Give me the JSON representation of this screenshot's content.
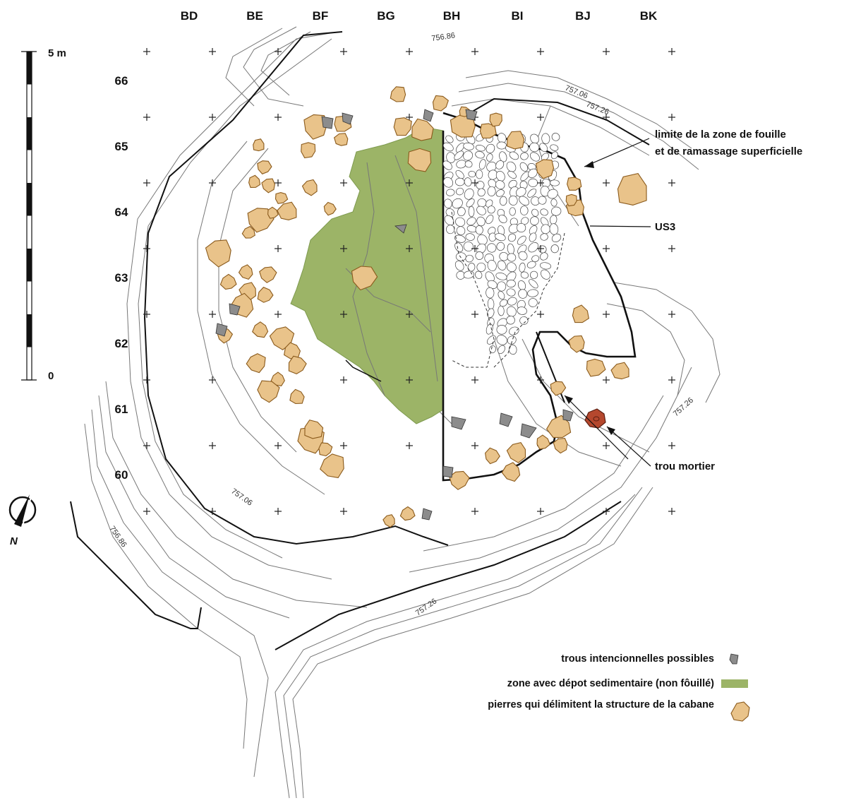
{
  "grid": {
    "columns": [
      "BD",
      "BE",
      "BF",
      "BG",
      "BH",
      "BI",
      "BJ",
      "BK"
    ],
    "rows": [
      "66",
      "65",
      "64",
      "63",
      "62",
      "61",
      "60"
    ]
  },
  "contour_labels": [
    "756.86",
    "757.06",
    "757.26",
    "757.26",
    "757.06",
    "756.86",
    "757.26"
  ],
  "annotations": {
    "excavation_limit_line1": "limite de la zone de fouille",
    "excavation_limit_line2": "et de ramassage superficielle",
    "us3": "US3",
    "mortar_hole": "trou mortier"
  },
  "scale_bar": {
    "top_label": "5 m",
    "bottom_label": "0"
  },
  "north_arrow": {
    "label": "N"
  },
  "legend": [
    {
      "label": "trous intencionnelles possibles",
      "symbol": "hole-symbol",
      "color": "#8c8c8c"
    },
    {
      "label": "zone avec dépot sedimentaire (non fôuillé)",
      "symbol": "sediment-swatch",
      "color": "#9cb467"
    },
    {
      "label": "pierres qui délimitent la structure de la cabane",
      "symbol": "stone-symbol",
      "color": "#e9c38a"
    }
  ],
  "colors": {
    "stone_fill": "#e9c38a",
    "stone_outline": "#8a5a1c",
    "sediment_zone": "#9cb467",
    "mortar_hole": "#b5482e",
    "contour": "#777777"
  }
}
